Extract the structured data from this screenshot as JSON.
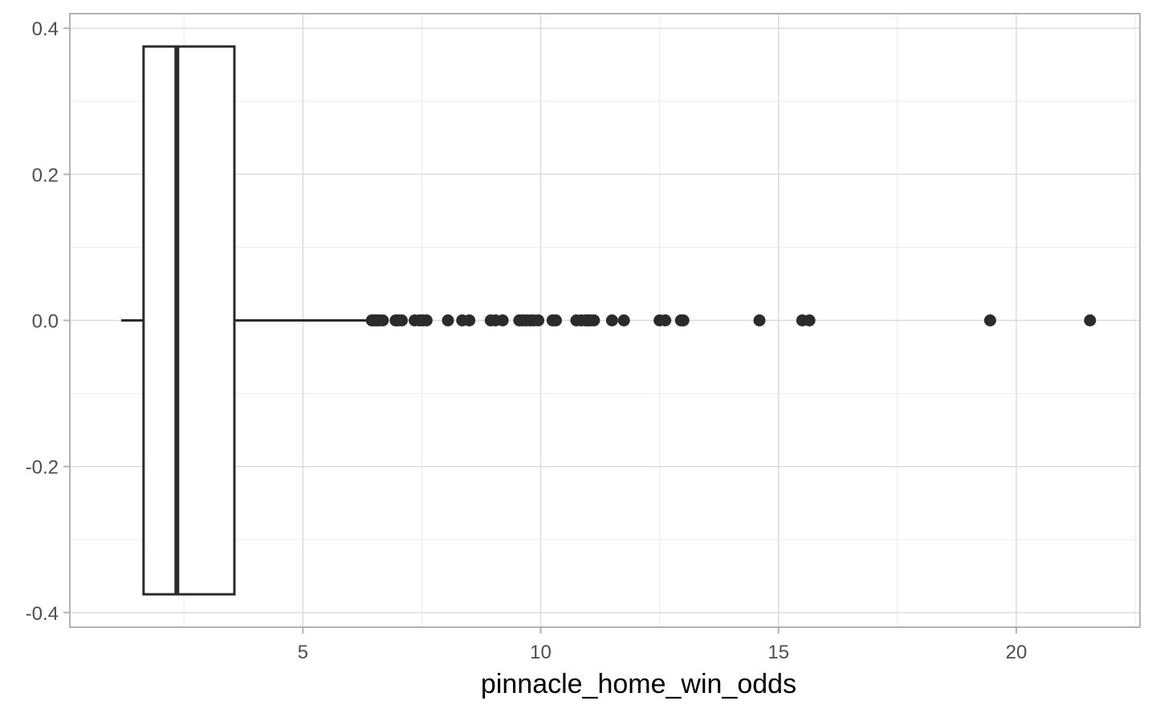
{
  "chart_data": {
    "type": "boxplot",
    "title": "",
    "xlabel": "pinnacle_home_win_odds",
    "ylabel": "",
    "xlim": [
      0.1,
      22.6
    ],
    "ylim": [
      -0.42,
      0.42
    ],
    "x_ticks": [
      5,
      10,
      15,
      20
    ],
    "x_tick_labels": [
      "5",
      "10",
      "15",
      "20"
    ],
    "y_ticks": [
      0.4,
      0.2,
      0.0,
      -0.2,
      -0.4
    ],
    "y_tick_labels": [
      "0.4",
      "0.2",
      "0.0",
      "-0.2",
      "-0.4"
    ],
    "grid": true,
    "box": {
      "whisker_low": 1.18,
      "q1": 1.65,
      "median": 2.35,
      "q3": 3.56,
      "whisker_high": 6.4,
      "y_center": 0.0,
      "half_height": 0.375
    },
    "outliers": [
      6.45,
      6.5,
      6.55,
      6.6,
      6.68,
      6.95,
      7.0,
      7.08,
      7.35,
      7.45,
      7.52,
      7.6,
      8.05,
      8.35,
      8.5,
      8.95,
      9.05,
      9.2,
      9.55,
      9.62,
      9.7,
      9.78,
      9.85,
      9.95,
      10.25,
      10.32,
      10.75,
      10.85,
      10.95,
      11.0,
      11.05,
      11.12,
      11.5,
      11.75,
      12.5,
      12.62,
      12.95,
      13.0,
      14.6,
      15.5,
      15.65,
      19.45,
      21.55
    ],
    "colors": {
      "box_stroke": "#2b2b2b",
      "box_fill": "#ffffff",
      "point": "#2b2b2b",
      "grid_major": "#d9d9d9",
      "grid_minor": "#ebebeb",
      "panel_border": "#b3b3b3",
      "tick_text": "#4d4d4d"
    }
  }
}
